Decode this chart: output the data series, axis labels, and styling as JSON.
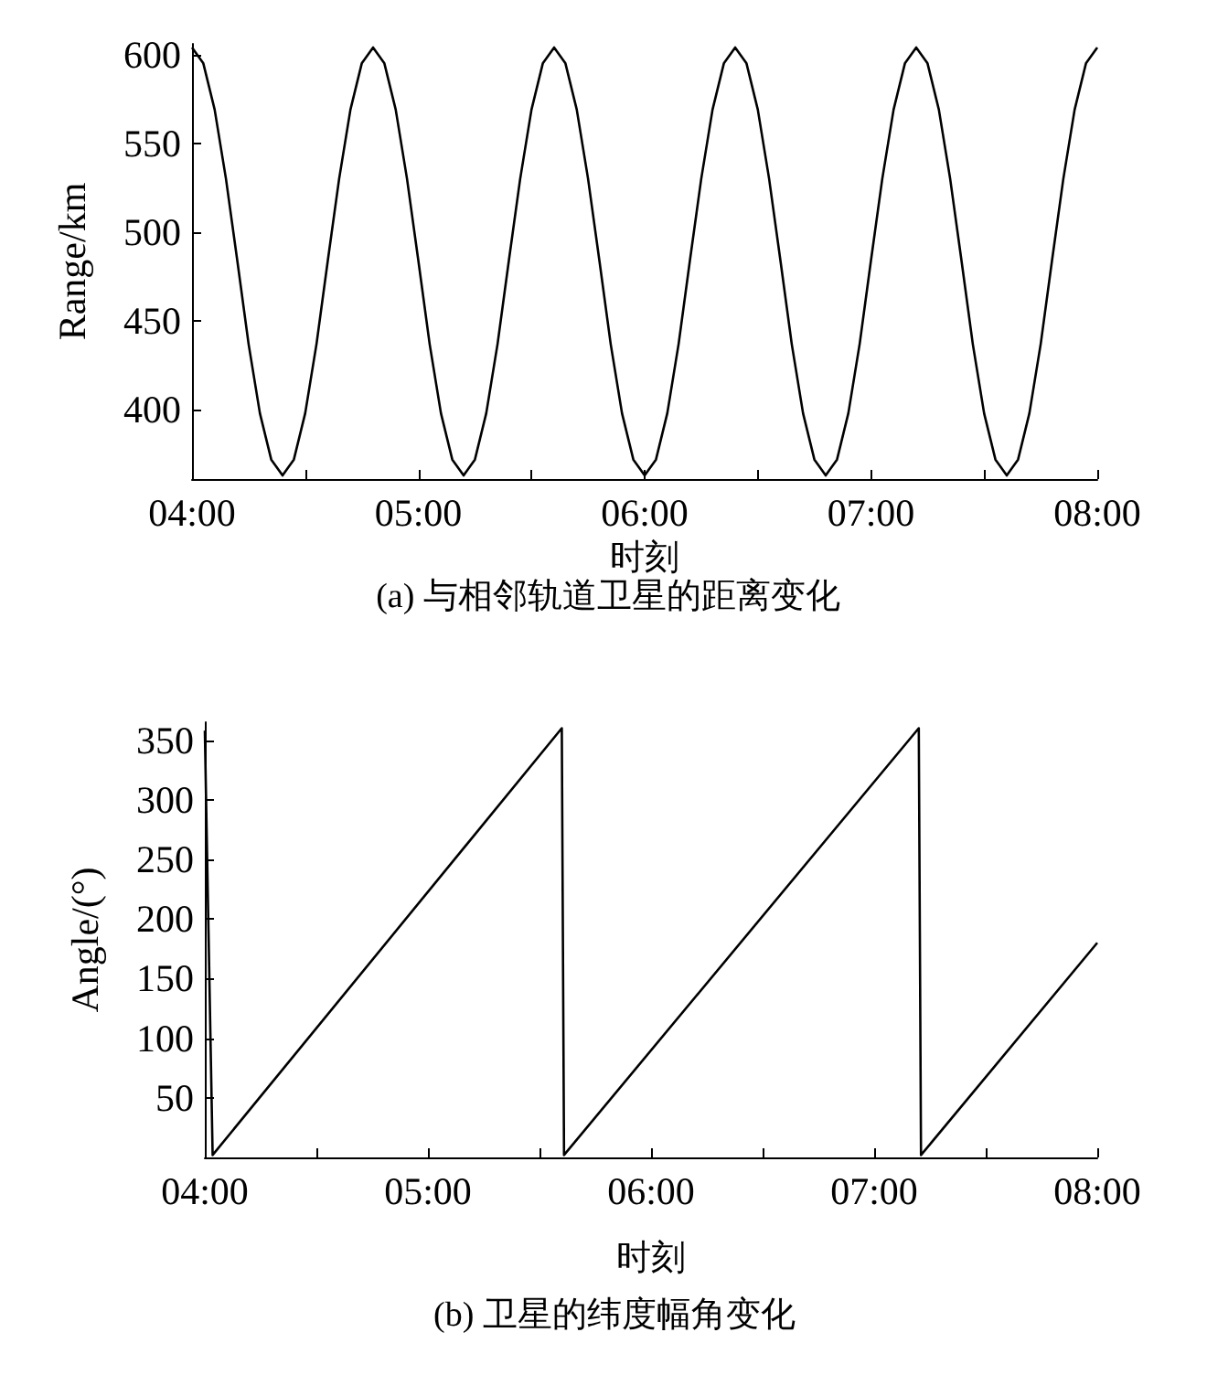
{
  "chart_data": [
    {
      "type": "line",
      "title": "(a) 与相邻轨道卫星的距离变化",
      "xlabel": "时刻",
      "ylabel": "Range/km",
      "x": [
        4.0,
        4.05,
        4.1,
        4.15,
        4.2,
        4.25,
        4.3,
        4.35,
        4.4,
        4.45,
        4.5,
        4.55,
        4.6,
        4.65,
        4.7,
        4.75,
        4.8,
        4.85,
        4.9,
        4.95,
        5.0,
        5.05,
        5.1,
        5.15,
        5.2,
        5.25,
        5.3,
        5.35,
        5.4,
        5.45,
        5.5,
        5.55,
        5.6,
        5.65,
        5.7,
        5.75,
        5.8,
        5.85,
        5.9,
        5.95,
        6.0,
        6.05,
        6.1,
        6.15,
        6.2,
        6.25,
        6.3,
        6.35,
        6.4,
        6.45,
        6.5,
        6.55,
        6.6,
        6.65,
        6.7,
        6.75,
        6.8,
        6.85,
        6.9,
        6.95,
        7.0,
        7.05,
        7.1,
        7.15,
        7.2,
        7.25,
        7.3,
        7.35,
        7.4,
        7.45,
        7.5,
        7.55,
        7.6,
        7.65,
        7.7,
        7.75,
        7.8,
        7.85,
        7.9,
        7.95,
        8.0
      ],
      "series": [
        {
          "color": "#000000",
          "values": [
            604,
            595,
            569,
            530,
            484,
            437,
            398,
            372,
            363,
            372,
            398,
            437,
            484,
            530,
            569,
            595,
            604,
            595,
            569,
            530,
            484,
            437,
            398,
            372,
            363,
            372,
            398,
            437,
            484,
            530,
            569,
            595,
            604,
            595,
            569,
            530,
            484,
            437,
            398,
            372,
            363,
            372,
            398,
            437,
            484,
            530,
            569,
            595,
            604,
            595,
            569,
            530,
            484,
            437,
            398,
            372,
            363,
            372,
            398,
            437,
            484,
            530,
            569,
            595,
            604,
            595,
            569,
            530,
            484,
            437,
            398,
            372,
            363,
            372,
            398,
            437,
            484,
            530,
            569,
            595,
            604
          ]
        }
      ],
      "xlim": [
        4,
        8
      ],
      "xticks": [
        {
          "value": 4,
          "label": "04:00"
        },
        {
          "value": 4.5,
          "label": null
        },
        {
          "value": 5,
          "label": "05:00"
        },
        {
          "value": 5.5,
          "label": null
        },
        {
          "value": 6,
          "label": "06:00"
        },
        {
          "value": 6.5,
          "label": null
        },
        {
          "value": 7,
          "label": "07:00"
        },
        {
          "value": 7.5,
          "label": null
        },
        {
          "value": 8,
          "label": "08:00"
        }
      ],
      "ylim": [
        361,
        606
      ],
      "yticks": [
        400,
        450,
        500,
        550,
        600
      ],
      "grid": false,
      "marker": "none",
      "line_style": "solid"
    },
    {
      "type": "line",
      "title": "(b) 卫星的纬度幅角变化",
      "xlabel": "时刻",
      "ylabel": "Angle/(°)",
      "x": [
        4.0,
        4.035,
        5.6,
        5.61,
        7.2,
        7.21,
        8.0
      ],
      "series": [
        {
          "color": "#000000",
          "values": [
            358,
            2,
            360,
            2,
            360,
            2,
            180
          ]
        }
      ],
      "xlim": [
        4,
        8
      ],
      "xticks": [
        {
          "value": 4,
          "label": "04:00"
        },
        {
          "value": 4.5,
          "label": null
        },
        {
          "value": 5,
          "label": "05:00"
        },
        {
          "value": 5.5,
          "label": null
        },
        {
          "value": 6,
          "label": "06:00"
        },
        {
          "value": 6.5,
          "label": null
        },
        {
          "value": 7,
          "label": "07:00"
        },
        {
          "value": 7.5,
          "label": null
        },
        {
          "value": 8,
          "label": "08:00"
        }
      ],
      "ylim": [
        0,
        365
      ],
      "yticks": [
        50,
        100,
        150,
        200,
        250,
        300,
        350
      ],
      "grid": false,
      "marker": "none",
      "line_style": "solid"
    }
  ]
}
